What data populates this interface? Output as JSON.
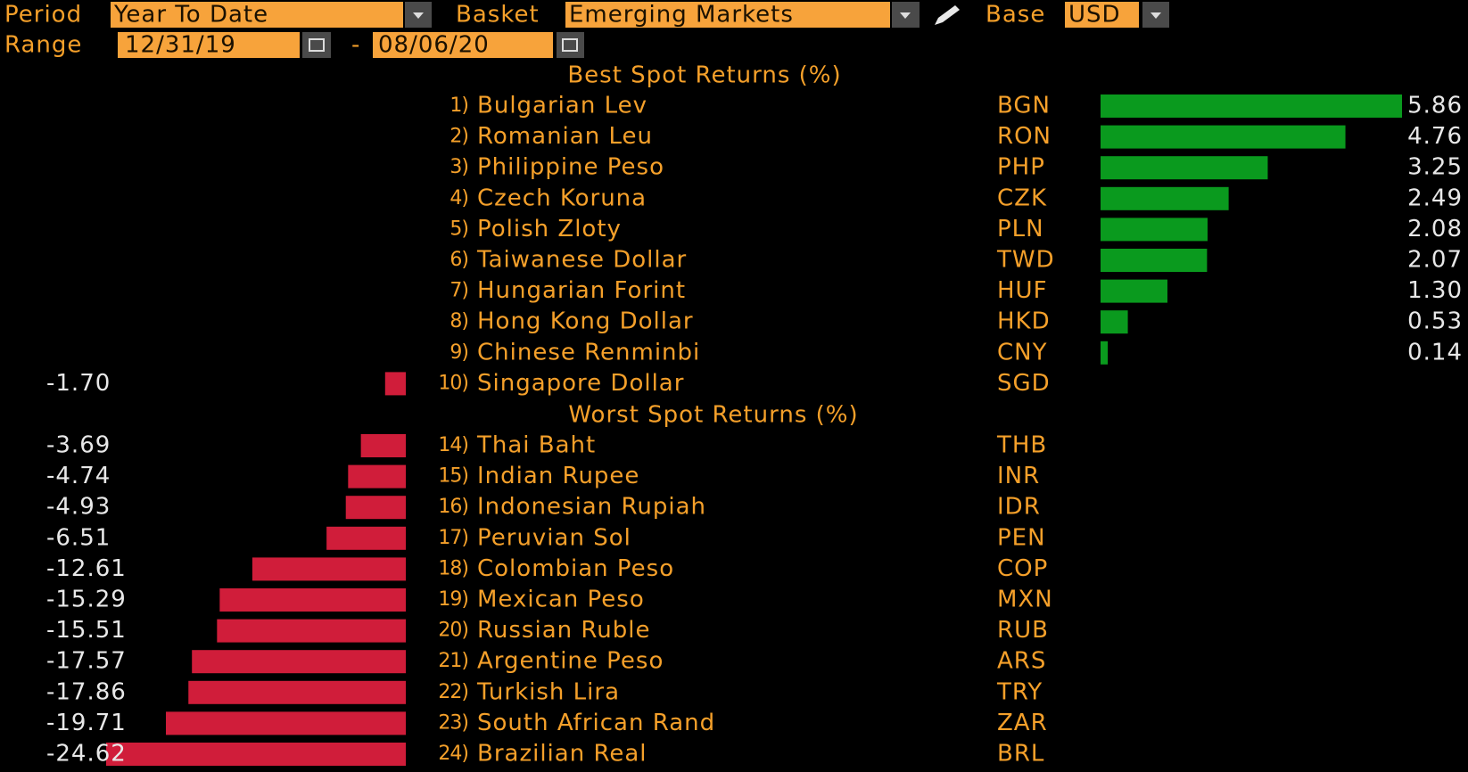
{
  "header": {
    "period_label": "Period",
    "period": "Year To Date",
    "basket_label": "Basket",
    "basket": "Emerging Markets",
    "base_label": "Base",
    "base": "USD",
    "range_label": "Range",
    "start_date": "12/31/19",
    "range_separator": "-",
    "end_date": "08/06/20"
  },
  "best": {
    "title": "Best Spot Returns (%)",
    "rows": [
      {
        "rank": "1)",
        "name": "Bulgarian Lev",
        "code": "BGN",
        "value": 5.86
      },
      {
        "rank": "2)",
        "name": "Romanian Leu",
        "code": "RON",
        "value": 4.76
      },
      {
        "rank": "3)",
        "name": "Philippine Peso",
        "code": "PHP",
        "value": 3.25
      },
      {
        "rank": "4)",
        "name": "Czech Koruna",
        "code": "CZK",
        "value": 2.49
      },
      {
        "rank": "5)",
        "name": "Polish Zloty",
        "code": "PLN",
        "value": 2.08
      },
      {
        "rank": "6)",
        "name": "Taiwanese Dollar",
        "code": "TWD",
        "value": 2.07
      },
      {
        "rank": "7)",
        "name": "Hungarian Forint",
        "code": "HUF",
        "value": 1.3,
        "value_label": "1.30"
      },
      {
        "rank": "8)",
        "name": "Hong Kong Dollar",
        "code": "HKD",
        "value": 0.53
      },
      {
        "rank": "9)",
        "name": "Chinese Renminbi",
        "code": "CNY",
        "value": 0.14
      },
      {
        "rank": "10)",
        "name": "Singapore Dollar",
        "code": "SGD",
        "value": -1.7,
        "value_label": "-1.70"
      }
    ]
  },
  "worst": {
    "title": "Worst Spot Returns (%)",
    "rows": [
      {
        "rank": "14)",
        "name": "Thai Baht",
        "code": "THB",
        "value": -3.69
      },
      {
        "rank": "15)",
        "name": "Indian Rupee",
        "code": "INR",
        "value": -4.74
      },
      {
        "rank": "16)",
        "name": "Indonesian Rupiah",
        "code": "IDR",
        "value": -4.93
      },
      {
        "rank": "17)",
        "name": "Peruvian Sol",
        "code": "PEN",
        "value": -6.51
      },
      {
        "rank": "18)",
        "name": "Colombian Peso",
        "code": "COP",
        "value": -12.61
      },
      {
        "rank": "19)",
        "name": "Mexican Peso",
        "code": "MXN",
        "value": -15.29
      },
      {
        "rank": "20)",
        "name": "Russian Ruble",
        "code": "RUB",
        "value": -15.51
      },
      {
        "rank": "21)",
        "name": "Argentine Peso",
        "code": "ARS",
        "value": -17.57
      },
      {
        "rank": "22)",
        "name": "Turkish Lira",
        "code": "TRY",
        "value": -17.86
      },
      {
        "rank": "23)",
        "name": "South African Rand",
        "code": "ZAR",
        "value": -19.71
      },
      {
        "rank": "24)",
        "name": "Brazilian Real",
        "code": "BRL",
        "value": -24.62
      }
    ]
  }
}
